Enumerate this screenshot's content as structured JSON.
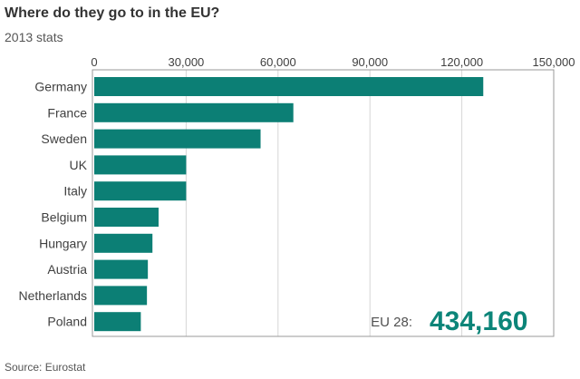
{
  "title": "Where do they go to in the EU?",
  "subtitle": "2013 stats",
  "source": "Source: Eurostat",
  "total": {
    "label": "EU 28:",
    "value": "434,160"
  },
  "colors": {
    "bar": "#0c7f75",
    "total": "#0c8579",
    "grid": "#d6d6d6",
    "frame": "#999999"
  },
  "chart_data": {
    "type": "bar",
    "orientation": "horizontal",
    "title": "Where do they go to in the EU?",
    "subtitle": "2013 stats",
    "categories": [
      "Germany",
      "France",
      "Sweden",
      "UK",
      "Italy",
      "Belgium",
      "Hungary",
      "Austria",
      "Netherlands",
      "Poland"
    ],
    "values": [
      127000,
      65000,
      54300,
      30000,
      30000,
      21000,
      19000,
      17500,
      17200,
      15200
    ],
    "xlim": [
      0,
      150000
    ],
    "xticks": [
      0,
      30000,
      60000,
      90000,
      120000,
      150000
    ],
    "xtick_labels": [
      "0",
      "30,000",
      "60,000",
      "90,000",
      "120,000",
      "150,000"
    ],
    "tick_position": "top",
    "grid": true
  }
}
